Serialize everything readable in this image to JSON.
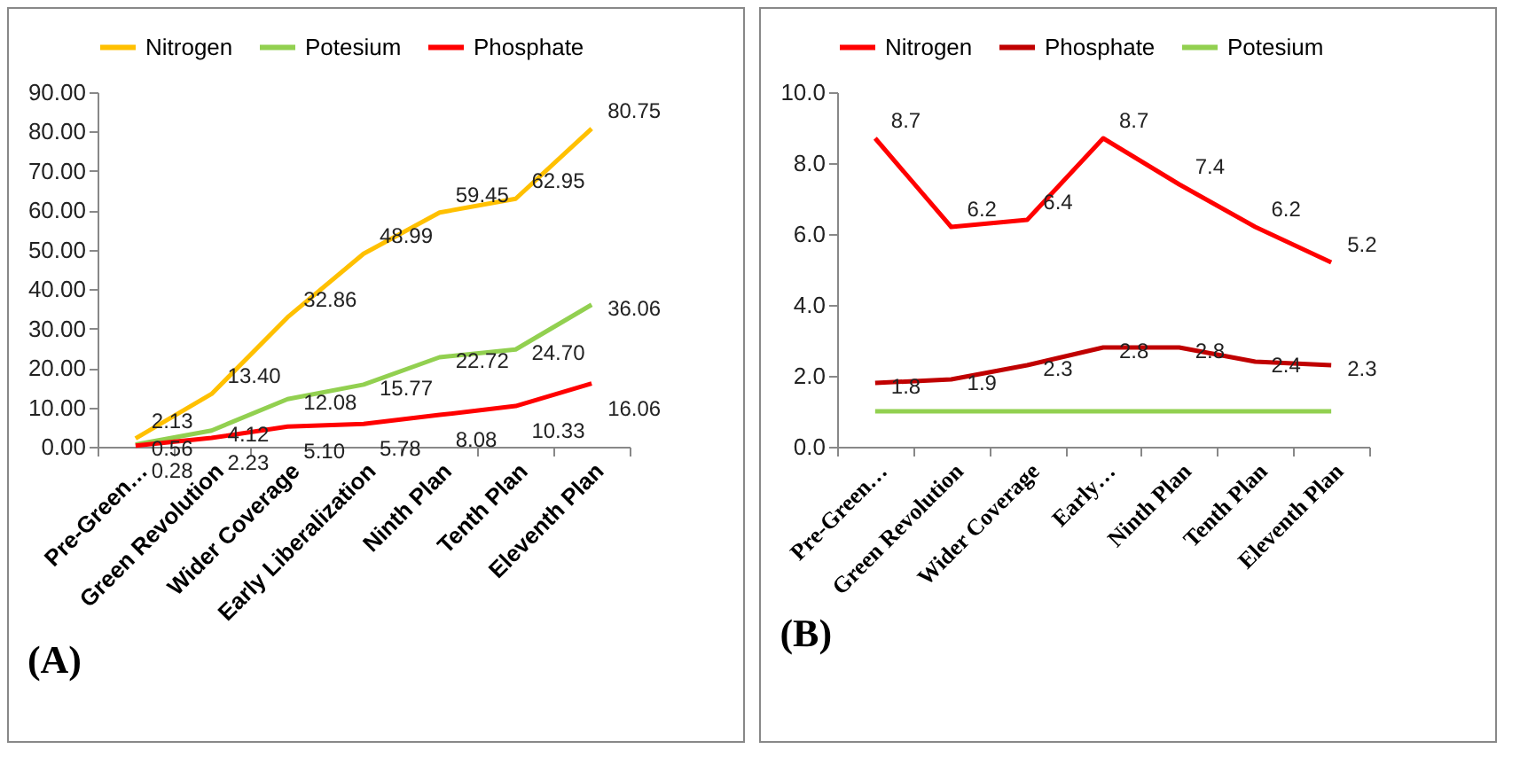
{
  "chart_data": [
    {
      "type": "line",
      "title": "(A)",
      "categories": [
        "Pre-Green…",
        "Green Revolution",
        "Wider Coverage",
        "Early Liberalization",
        "Ninth Plan",
        "Tenth Plan",
        "Eleventh Plan"
      ],
      "series": [
        {
          "name": "Nitrogen",
          "color": "#ffc000",
          "values": [
            2.13,
            13.4,
            32.86,
            48.99,
            59.45,
            62.95,
            80.75
          ],
          "value_labels": [
            "2.13",
            "13.40",
            "32.86",
            "48.99",
            "59.45",
            "62.95",
            "80.75"
          ]
        },
        {
          "name": "Potesium",
          "color": "#92d050",
          "values": [
            0.56,
            4.12,
            12.08,
            15.77,
            22.72,
            24.7,
            36.06
          ],
          "value_labels": [
            "0.56",
            "4.12",
            "12.08",
            "15.77",
            "22.72",
            "24.70",
            "36.06"
          ]
        },
        {
          "name": "Phosphate",
          "color": "#ff0000",
          "values": [
            0.28,
            2.23,
            5.1,
            5.78,
            8.08,
            10.33,
            16.06
          ],
          "value_labels": [
            "0.28",
            "2.23",
            "5.10",
            "5.78",
            "8.08",
            "10.33",
            "16.06"
          ]
        }
      ],
      "ylim": [
        0,
        90
      ],
      "yticks": [
        {
          "value": 0,
          "label": "0.00"
        },
        {
          "value": 10,
          "label": "10.00"
        },
        {
          "value": 20,
          "label": "20.00"
        },
        {
          "value": 30,
          "label": "30.00"
        },
        {
          "value": 40,
          "label": "40.00"
        },
        {
          "value": 50,
          "label": "50.00"
        },
        {
          "value": 60,
          "label": "60.00"
        },
        {
          "value": 70,
          "label": "70.00"
        },
        {
          "value": 80,
          "label": "80.00"
        },
        {
          "value": 90,
          "label": "90.00"
        }
      ],
      "grid": false,
      "legend": "top",
      "marker": "none"
    },
    {
      "type": "line",
      "title": "(B)",
      "categories": [
        "Pre-Green…",
        "Green Revolution",
        "Wider Coverage",
        "Early…",
        "Ninth Plan",
        "Tenth Plan",
        "Eleventh Plan"
      ],
      "series": [
        {
          "name": "Nitrogen",
          "color": "#ff0000",
          "values": [
            8.7,
            6.2,
            6.4,
            8.7,
            7.4,
            6.2,
            5.2
          ],
          "value_labels": [
            "8.7",
            "6.2",
            "6.4",
            "8.7",
            "7.4",
            "6.2",
            "5.2"
          ]
        },
        {
          "name": "Phosphate",
          "color": "#c00000",
          "values": [
            1.8,
            1.9,
            2.3,
            2.8,
            2.8,
            2.4,
            2.3
          ],
          "value_labels": [
            "1.8",
            "1.9",
            "2.3",
            "2.8",
            "2.8",
            "2.4",
            "2.3"
          ]
        },
        {
          "name": "Potesium",
          "color": "#92d050",
          "values": [
            1.0,
            1.0,
            1.0,
            1.0,
            1.0,
            1.0,
            1.0
          ]
        }
      ],
      "ylim": [
        0,
        10
      ],
      "yticks": [
        {
          "value": 0,
          "label": "0.0"
        },
        {
          "value": 2,
          "label": "2.0"
        },
        {
          "value": 4,
          "label": "4.0"
        },
        {
          "value": 6,
          "label": "6.0"
        },
        {
          "value": 8,
          "label": "8.0"
        },
        {
          "value": 10,
          "label": "10.0"
        }
      ],
      "grid": false,
      "legend": "top",
      "marker": "none"
    }
  ]
}
